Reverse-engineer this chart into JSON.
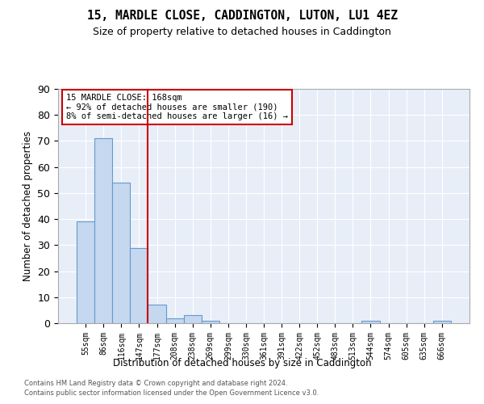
{
  "title": "15, MARDLE CLOSE, CADDINGTON, LUTON, LU1 4EZ",
  "subtitle": "Size of property relative to detached houses in Caddington",
  "xlabel": "Distribution of detached houses by size in Caddington",
  "ylabel": "Number of detached properties",
  "bar_values": [
    39,
    71,
    54,
    29,
    7,
    2,
    3,
    1,
    0,
    0,
    0,
    0,
    0,
    0,
    0,
    0,
    1,
    0,
    0,
    0,
    1
  ],
  "bin_labels": [
    "55sqm",
    "86sqm",
    "116sqm",
    "147sqm",
    "177sqm",
    "208sqm",
    "238sqm",
    "269sqm",
    "299sqm",
    "330sqm",
    "361sqm",
    "391sqm",
    "422sqm",
    "452sqm",
    "483sqm",
    "513sqm",
    "544sqm",
    "574sqm",
    "605sqm",
    "635sqm",
    "666sqm"
  ],
  "bar_color": "#c5d8f0",
  "bar_edge_color": "#6699cc",
  "vline_color": "#cc0000",
  "annotation_line1": "15 MARDLE CLOSE: 168sqm",
  "annotation_line2": "← 92% of detached houses are smaller (190)",
  "annotation_line3": "8% of semi-detached houses are larger (16) →",
  "annotation_box_edgecolor": "#cc0000",
  "ylim": [
    0,
    90
  ],
  "yticks": [
    0,
    10,
    20,
    30,
    40,
    50,
    60,
    70,
    80,
    90
  ],
  "background_color": "#e8eef8",
  "grid_color": "#ffffff",
  "footer_line1": "Contains HM Land Registry data © Crown copyright and database right 2024.",
  "footer_line2": "Contains public sector information licensed under the Open Government Licence v3.0."
}
